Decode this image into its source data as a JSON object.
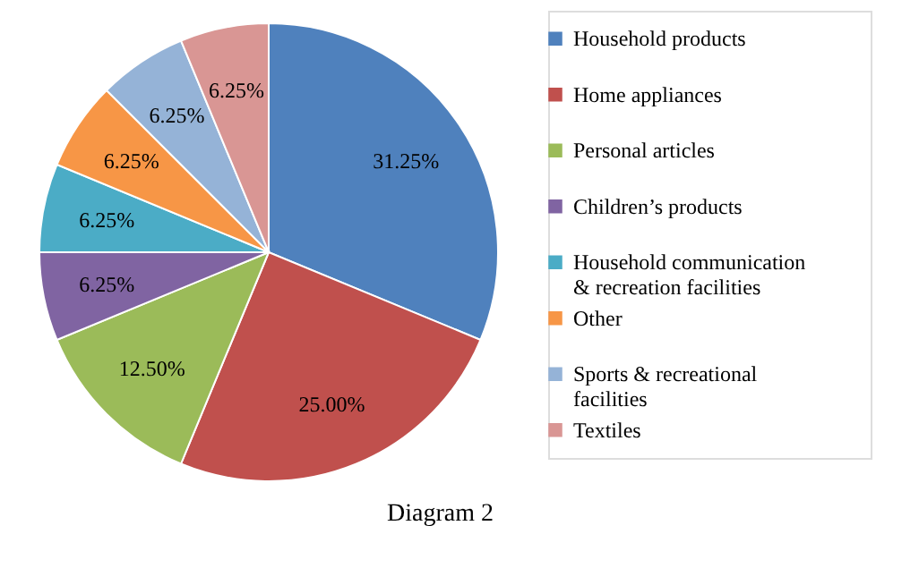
{
  "chart_data": {
    "type": "pie",
    "title": "Diagram 2",
    "categories": [
      "Household products",
      "Home appliances",
      "Personal articles",
      "Children’s products",
      "Household communication & recreation facilities",
      "Other",
      "Sports & recreational facilities",
      "Textiles"
    ],
    "values": [
      31.25,
      25,
      12.5,
      6.25,
      6.25,
      6.25,
      6.25,
      6.25
    ],
    "value_labels": [
      "31.25%",
      "25.00%",
      "12.50%",
      "6.25%",
      "6.25%",
      "6.25%",
      "6.25%",
      "6.25%"
    ],
    "colors": [
      "#4f81bd",
      "#c0504d",
      "#9bbb59",
      "#8064a2",
      "#4bacc6",
      "#f79646",
      "#95b3d7",
      "#d99694"
    ],
    "legend": "right"
  }
}
